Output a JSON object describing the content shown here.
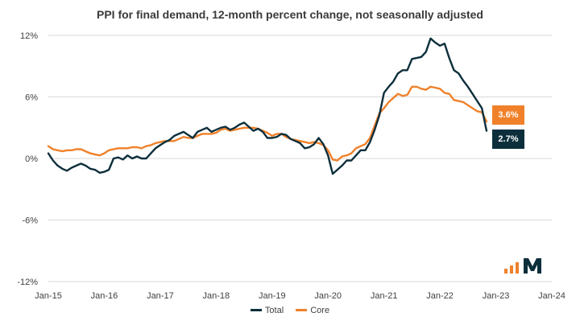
{
  "title": "PPI for final demand, 12-month percent change, not seasonally adjusted",
  "legend": {
    "total_label": "Total",
    "core_label": "Core"
  },
  "badges": {
    "core": "3.6%",
    "total": "2.7%"
  },
  "colors": {
    "total": "#0d2f3c",
    "core": "#f0812a",
    "grid": "#d9d9d9",
    "badge_total": "#0d2f3c",
    "badge_core": "#f0812a"
  },
  "chart_data": {
    "type": "line",
    "title": "PPI for final demand, 12-month percent change, not seasonally adjusted",
    "xlabel": "",
    "ylabel": "",
    "ylim": [
      -12,
      12
    ],
    "yticks": [
      -12,
      -6,
      0,
      6,
      12
    ],
    "ytick_labels": [
      "-12%",
      "-6%",
      "0%",
      "6%",
      "12%"
    ],
    "xticks": [
      "Jan-15",
      "Jan-16",
      "Jan-17",
      "Jan-18",
      "Jan-19",
      "Jan-20",
      "Jan-21",
      "Jan-22",
      "Jan-23",
      "Jan-24"
    ],
    "grid": true,
    "legend_position": "bottom",
    "series": [
      {
        "name": "Total",
        "start": "2015-01",
        "values": [
          0.5,
          -0.2,
          -0.7,
          -1.0,
          -1.2,
          -0.9,
          -0.7,
          -0.5,
          -0.7,
          -1.0,
          -1.1,
          -1.4,
          -1.3,
          -1.1,
          0.0,
          0.1,
          -0.1,
          0.3,
          0.0,
          0.2,
          0.0,
          0.0,
          0.5,
          1.0,
          1.3,
          1.6,
          1.8,
          2.2,
          2.4,
          2.6,
          2.3,
          2.0,
          2.6,
          2.8,
          3.0,
          2.6,
          2.8,
          3.0,
          3.1,
          2.8,
          3.0,
          3.3,
          3.5,
          3.1,
          2.7,
          2.9,
          2.6,
          2.0,
          2.0,
          2.1,
          2.4,
          2.3,
          1.9,
          1.7,
          1.5,
          1.0,
          1.1,
          1.4,
          2.0,
          1.4,
          0.3,
          -1.5,
          -1.1,
          -0.7,
          -0.2,
          -0.2,
          0.3,
          0.8,
          0.8,
          1.6,
          2.8,
          4.2,
          6.4,
          7.0,
          7.5,
          8.3,
          8.6,
          8.6,
          9.7,
          9.8,
          9.9,
          10.4,
          11.7,
          11.3,
          11.0,
          11.2,
          9.8,
          8.6,
          8.3,
          7.6,
          7.0,
          6.3,
          5.6,
          4.9,
          2.7
        ],
        "last_value_label": "2.7%"
      },
      {
        "name": "Core",
        "start": "2015-01",
        "values": [
          1.2,
          0.9,
          0.8,
          0.7,
          0.8,
          0.8,
          0.9,
          0.9,
          0.7,
          0.5,
          0.4,
          0.3,
          0.5,
          0.8,
          0.9,
          1.0,
          1.0,
          1.0,
          1.1,
          1.1,
          1.0,
          1.2,
          1.3,
          1.5,
          1.6,
          1.7,
          1.7,
          1.7,
          1.9,
          2.1,
          2.0,
          2.0,
          2.2,
          2.4,
          2.4,
          2.4,
          2.5,
          2.8,
          2.9,
          2.7,
          2.8,
          2.9,
          3.0,
          3.0,
          3.0,
          2.9,
          2.7,
          2.5,
          2.2,
          2.4,
          2.4,
          2.1,
          1.9,
          1.8,
          1.7,
          1.6,
          1.5,
          1.6,
          1.5,
          1.3,
          0.8,
          -0.1,
          -0.2,
          0.2,
          0.3,
          0.5,
          1.0,
          1.2,
          1.4,
          2.0,
          3.2,
          4.4,
          4.9,
          5.5,
          5.9,
          6.3,
          6.1,
          6.2,
          7.0,
          7.0,
          6.8,
          6.7,
          7.0,
          6.9,
          6.8,
          6.4,
          6.3,
          5.7,
          5.6,
          5.5,
          5.2,
          4.9,
          4.6,
          4.5,
          3.6
        ],
        "last_value_label": "3.6%"
      }
    ]
  }
}
